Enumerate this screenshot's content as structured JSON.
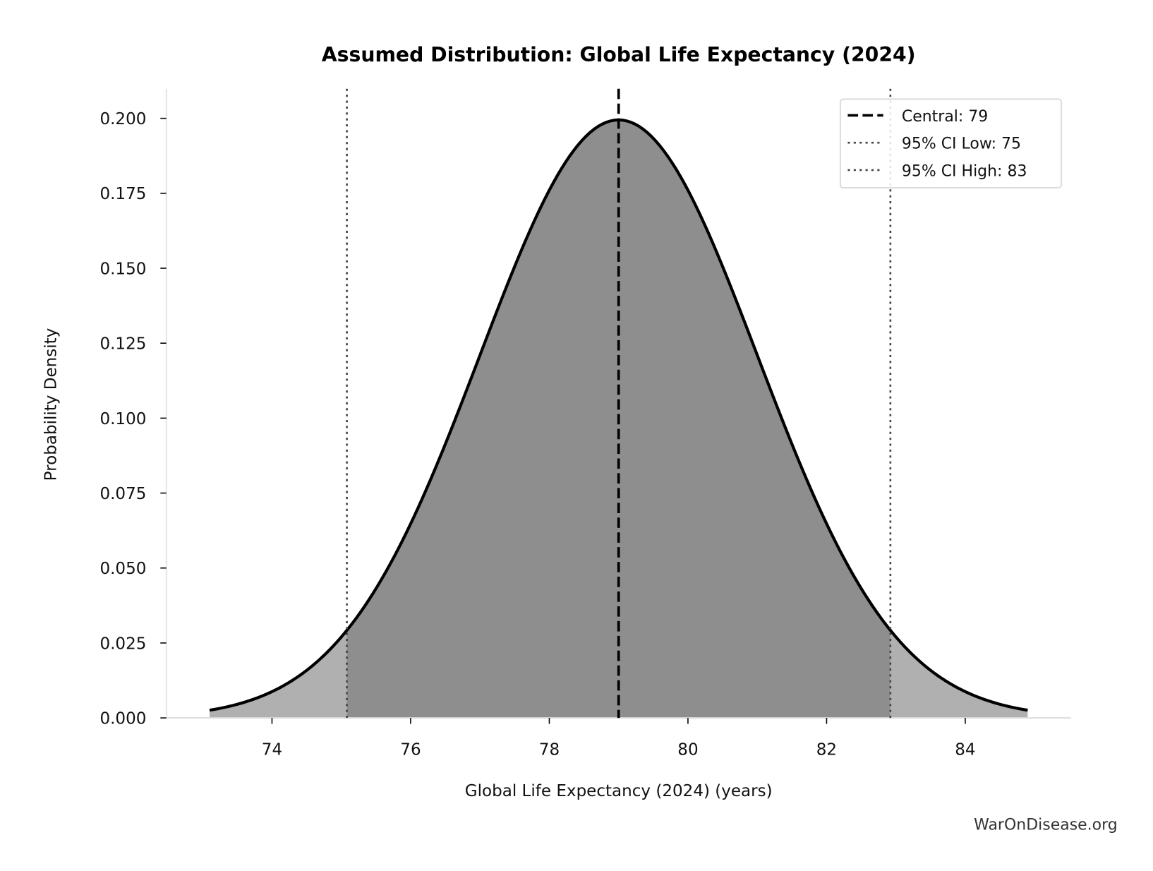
{
  "chart_data": {
    "type": "area",
    "title": "Assumed Distribution: Global Life Expectancy (2024)",
    "xlabel": "Global Life Expectancy (2024) (years)",
    "ylabel": "Probability Density",
    "distribution": {
      "kind": "normal",
      "mean": 79,
      "sd": 2
    },
    "x_range_plotted": [
      73.1,
      84.9
    ],
    "xlim": [
      72.5,
      85.5
    ],
    "ylim": [
      0,
      0.21
    ],
    "xticks": [
      "74",
      "76",
      "78",
      "80",
      "82",
      "84"
    ],
    "yticks": [
      "0.000",
      "0.025",
      "0.050",
      "0.075",
      "0.100",
      "0.125",
      "0.150",
      "0.175",
      "0.200"
    ],
    "central": 79,
    "ci_low": 75.08,
    "ci_high": 82.92,
    "legend": {
      "placement": "top-right",
      "entries": [
        {
          "label": "Central: 79",
          "style": "dashed"
        },
        {
          "label": "95% CI Low: 75",
          "style": "dotted"
        },
        {
          "label": "95% CI High: 83",
          "style": "dotted"
        }
      ]
    },
    "colors": {
      "curve": "#000000",
      "ci_fill": "#8e8e8e",
      "tail_fill": "#b0b0b0",
      "ci_lines": "#444444"
    },
    "grid": false
  },
  "watermark": "WarOnDisease.org"
}
